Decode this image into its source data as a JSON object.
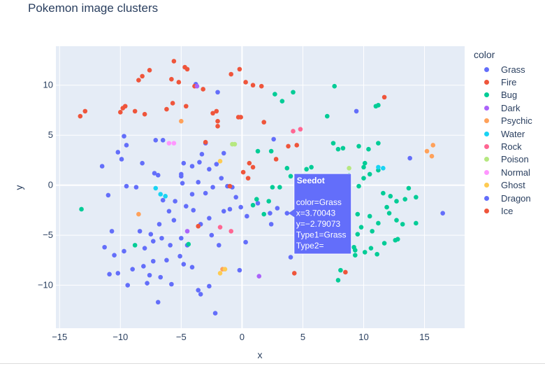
{
  "title": "Pokemon image clusters",
  "legend": {
    "title": "color",
    "items": [
      {
        "label": "Grass",
        "color": "#636efa"
      },
      {
        "label": "Fire",
        "color": "#EF553B"
      },
      {
        "label": "Bug",
        "color": "#00cc96"
      },
      {
        "label": "Dark",
        "color": "#ab63fa"
      },
      {
        "label": "Psychic",
        "color": "#FFA15A"
      },
      {
        "label": "Water",
        "color": "#19d3f3"
      },
      {
        "label": "Rock",
        "color": "#FF6692"
      },
      {
        "label": "Poison",
        "color": "#B6E880"
      },
      {
        "label": "Normal",
        "color": "#FF97FF"
      },
      {
        "label": "Ghost",
        "color": "#FECB52"
      },
      {
        "label": "Dragon",
        "color": "#636efa"
      },
      {
        "label": "Ice",
        "color": "#EF553B"
      }
    ]
  },
  "tooltip": {
    "name": "Seedot",
    "lines": [
      "color=Grass",
      "x=3.70043",
      "y=−2.79073",
      "Type1=Grass",
      "Type2="
    ]
  },
  "chart_data": {
    "type": "scatter",
    "xlabel": "x",
    "ylabel": "y",
    "xlim": [
      -15.3,
      18.3
    ],
    "ylim": [
      -14.3,
      13.9
    ],
    "xticks": [
      -15,
      -10,
      -5,
      0,
      5,
      10,
      15
    ],
    "yticks": [
      -10,
      -5,
      0,
      5,
      10
    ],
    "xtick_labels": [
      "−15",
      "−10",
      "−5",
      "0",
      "5",
      "10",
      "15"
    ],
    "ytick_labels": [
      "−10",
      "−5",
      "0",
      "5",
      "10"
    ],
    "grid": true,
    "legend_position": "right",
    "series": [
      {
        "name": "Grass",
        "points": [
          [
            -11.5,
            1.9
          ],
          [
            -9.7,
            4.9
          ],
          [
            -9.5,
            4.0
          ],
          [
            -10.2,
            3.3
          ],
          [
            -9.9,
            2.6
          ],
          [
            -11.0,
            -1.0
          ],
          [
            -9.5,
            -0.1
          ],
          [
            -8.7,
            -0.2
          ],
          [
            -8.2,
            2.2
          ],
          [
            -7.2,
            1.2
          ],
          [
            -6.9,
            1.0
          ],
          [
            -6.5,
            -1.5
          ],
          [
            -6.0,
            -2.6
          ],
          [
            -5.6,
            -3.5
          ],
          [
            -6.8,
            -3.9
          ],
          [
            -7.5,
            -4.9
          ],
          [
            -8.4,
            -4.6
          ],
          [
            -8.0,
            -6.3
          ],
          [
            -7.3,
            -5.6
          ],
          [
            -6.6,
            -5.3
          ],
          [
            -5.9,
            -6.0
          ],
          [
            -5.0,
            -5.3
          ],
          [
            -4.5,
            -6.0
          ],
          [
            -5.1,
            -7.1
          ],
          [
            -6.2,
            -7.5
          ],
          [
            -7.3,
            -7.6
          ],
          [
            -8.1,
            -8.1
          ],
          [
            -9.0,
            -8.4
          ],
          [
            -9.7,
            -6.6
          ],
          [
            -10.5,
            -7.0
          ],
          [
            -11.3,
            -6.2
          ],
          [
            -10.7,
            -4.6
          ],
          [
            -9.4,
            -10.0
          ],
          [
            -10.2,
            -8.8
          ],
          [
            -10.9,
            -8.9
          ],
          [
            -7.8,
            -9.8
          ],
          [
            -7.6,
            -9.0
          ],
          [
            -6.7,
            -9.2
          ],
          [
            -5.8,
            -9.9
          ],
          [
            -4.8,
            -7.9
          ],
          [
            -4.1,
            -8.2
          ],
          [
            -3.6,
            -10.5
          ],
          [
            -3.4,
            -10.9
          ],
          [
            -2.7,
            -10.1
          ],
          [
            -2.2,
            -12.8
          ],
          [
            -6.9,
            -11.7
          ],
          [
            -2.5,
            -5.0
          ],
          [
            -3.4,
            -3.9
          ],
          [
            -2.7,
            -3.3
          ],
          [
            -1.9,
            -6.0
          ],
          [
            -1.5,
            -2.6
          ],
          [
            -1.0,
            -2.4
          ],
          [
            -0.5,
            -1.2
          ],
          [
            -1.7,
            0.7
          ],
          [
            -1.2,
            -0.1
          ],
          [
            -2.4,
            -0.2
          ],
          [
            -3.0,
            -0.8
          ],
          [
            -3.6,
            0.3
          ],
          [
            -4.1,
            -0.9
          ],
          [
            -4.6,
            -2.1
          ],
          [
            -5.5,
            -1.6
          ],
          [
            -4.9,
            0.2
          ],
          [
            -5.0,
            1.1
          ],
          [
            -4.1,
            1.9
          ],
          [
            -3.5,
            2.3
          ],
          [
            -2.7,
            1.6
          ],
          [
            -3.3,
            3.1
          ],
          [
            -3.0,
            4.2
          ],
          [
            -2.1,
            2.1
          ],
          [
            -1.5,
            3.2
          ],
          [
            -4.8,
            2.2
          ],
          [
            -3.8,
            10.1
          ],
          [
            -2.0,
            9.3
          ],
          [
            -0.1,
            -2.2
          ],
          [
            0.3,
            -5.7
          ],
          [
            -0.2,
            -8.5
          ],
          [
            1.3,
            -1.8
          ],
          [
            2.3,
            -2.8
          ],
          [
            2.4,
            -3.9
          ],
          [
            2.9,
            -2.3
          ],
          [
            3.7,
            -2.8
          ],
          [
            4.0,
            -7.2
          ],
          [
            5.3,
            -0.3
          ],
          [
            6.0,
            0.9
          ],
          [
            9.4,
            7.4
          ],
          [
            13.8,
            2.7
          ],
          [
            16.5,
            -2.8
          ],
          [
            2.6,
            4.6
          ],
          [
            -7.1,
            4.5
          ],
          [
            -6.5,
            4.5
          ],
          [
            -0.8,
            -0.2
          ],
          [
            0.4,
            -3.1
          ]
        ]
      },
      {
        "name": "Fire",
        "points": [
          [
            -13.3,
            6.9
          ],
          [
            -12.9,
            7.4
          ],
          [
            -10.0,
            7.3
          ],
          [
            -9.8,
            7.7
          ],
          [
            -9.6,
            7.9
          ],
          [
            -8.8,
            7.4
          ],
          [
            -8.5,
            10.5
          ],
          [
            -8.2,
            10.9
          ],
          [
            -7.6,
            11.5
          ],
          [
            -8.0,
            7.1
          ],
          [
            -6.2,
            7.6
          ],
          [
            -5.8,
            10.6
          ],
          [
            -5.7,
            8.2
          ],
          [
            -5.2,
            10.3
          ],
          [
            -4.7,
            11.8
          ],
          [
            -4.5,
            11.6
          ],
          [
            -3.9,
            9.9
          ],
          [
            -3.2,
            9.6
          ],
          [
            -5.6,
            12.4
          ],
          [
            -4.6,
            7.9
          ],
          [
            -2.4,
            7.2
          ],
          [
            -2.1,
            7.4
          ],
          [
            -2.0,
            6.4
          ],
          [
            -2.0,
            5.9
          ],
          [
            -0.3,
            6.8
          ],
          [
            -0.1,
            6.8
          ],
          [
            -0.9,
            11.1
          ],
          [
            -0.2,
            11.6
          ],
          [
            0.3,
            10.3
          ],
          [
            0.9,
            10.0
          ],
          [
            1.6,
            9.9
          ],
          [
            1.8,
            6.3
          ],
          [
            2.8,
            2.6
          ],
          [
            3.8,
            3.9
          ],
          [
            4.5,
            4.0
          ],
          [
            0.6,
            2.2
          ],
          [
            0.9,
            1.8
          ],
          [
            -3.0,
            4.3
          ],
          [
            11.7,
            8.8
          ],
          [
            8.5,
            -8.7
          ],
          [
            4.3,
            -8.8
          ],
          [
            0.5,
            0.7
          ],
          [
            -1.0,
            -0.1
          ]
        ]
      },
      {
        "name": "Bug",
        "points": [
          [
            -13.2,
            -2.4
          ],
          [
            -8.8,
            -6.0
          ],
          [
            -4.4,
            -5.9
          ],
          [
            0.9,
            -2.0
          ],
          [
            1.2,
            -1.4
          ],
          [
            1.8,
            -2.9
          ],
          [
            2.2,
            -1.6
          ],
          [
            2.5,
            -0.2
          ],
          [
            3.1,
            -0.2
          ],
          [
            3.7,
            1.7
          ],
          [
            2.4,
            3.4
          ],
          [
            1.3,
            3.4
          ],
          [
            4.0,
            0.9
          ],
          [
            5.3,
            1.6
          ],
          [
            5.7,
            1.8
          ],
          [
            2.7,
            9.1
          ],
          [
            3.3,
            8.4
          ],
          [
            4.2,
            9.3
          ],
          [
            7.6,
            9.9
          ],
          [
            7.0,
            6.9
          ],
          [
            7.5,
            4.2
          ],
          [
            7.9,
            3.6
          ],
          [
            8.3,
            3.7
          ],
          [
            9.6,
            3.9
          ],
          [
            10.4,
            3.6
          ],
          [
            11.2,
            4.2
          ],
          [
            11.0,
            7.9
          ],
          [
            11.2,
            8.0
          ],
          [
            8.8,
            1.0
          ],
          [
            9.6,
            -0.1
          ],
          [
            10.0,
            0.7
          ],
          [
            10.0,
            1.8
          ],
          [
            10.1,
            2.2
          ],
          [
            10.5,
            1.1
          ],
          [
            11.2,
            1.5
          ],
          [
            11.6,
            -0.8
          ],
          [
            12.2,
            -1.1
          ],
          [
            11.9,
            -2.2
          ],
          [
            12.1,
            -2.8
          ],
          [
            12.7,
            -1.6
          ],
          [
            13.4,
            -1.4
          ],
          [
            13.7,
            -0.3
          ],
          [
            14.3,
            -1.2
          ],
          [
            12.7,
            -3.5
          ],
          [
            13.2,
            -3.9
          ],
          [
            12.6,
            -5.5
          ],
          [
            14.3,
            -3.8
          ],
          [
            11.2,
            -3.8
          ],
          [
            10.7,
            -4.6
          ],
          [
            9.8,
            -4.2
          ],
          [
            9.5,
            -4.9
          ],
          [
            9.2,
            -6.2
          ],
          [
            9.3,
            -6.5
          ],
          [
            9.3,
            -7.0
          ],
          [
            10.1,
            -6.7
          ],
          [
            10.6,
            -6.3
          ],
          [
            11.1,
            -6.9
          ],
          [
            11.7,
            -5.8
          ],
          [
            12.8,
            -5.4
          ],
          [
            8.1,
            -8.5
          ],
          [
            7.9,
            -9.5
          ],
          [
            10.5,
            -3.1
          ],
          [
            9.5,
            -2.9
          ]
        ]
      },
      {
        "name": "Dark",
        "points": [
          [
            -4.5,
            -4.6
          ],
          [
            1.4,
            -9.1
          ],
          [
            -3.7,
            9.9
          ]
        ]
      },
      {
        "name": "Psychic",
        "points": [
          [
            -8.5,
            -2.9
          ],
          [
            -5.0,
            6.4
          ],
          [
            15.2,
            3.4
          ],
          [
            15.7,
            4.0
          ],
          [
            15.6,
            2.9
          ],
          [
            -1.6,
            -8.4
          ]
        ]
      },
      {
        "name": "Water",
        "points": [
          [
            -7.1,
            -0.3
          ],
          [
            -6.7,
            -0.9
          ],
          [
            -6.3,
            -1.1
          ],
          [
            11.2,
            1.8
          ],
          [
            11.6,
            1.7
          ]
        ]
      },
      {
        "name": "Rock",
        "points": [
          [
            -1.8,
            -4.2
          ],
          [
            -0.9,
            -4.6
          ],
          [
            4.2,
            5.4
          ],
          [
            4.8,
            5.6
          ]
        ]
      },
      {
        "name": "Poison",
        "points": [
          [
            -0.8,
            4.1
          ],
          [
            -0.6,
            4.1
          ],
          [
            8.8,
            1.7
          ]
        ]
      },
      {
        "name": "Normal",
        "points": [
          [
            -6.0,
            4.2
          ],
          [
            -5.6,
            4.2
          ]
        ]
      },
      {
        "name": "Ghost",
        "points": [
          [
            -1.8,
            2.4
          ],
          [
            -1.8,
            -8.8
          ],
          [
            -1.4,
            -8.4
          ]
        ]
      },
      {
        "name": "Dragon",
        "points": [
          [
            -5.0,
            0.9
          ],
          [
            -4.0,
            -2.5
          ]
        ]
      },
      {
        "name": "Ice",
        "points": [
          [
            -3.6,
            -4.1
          ],
          [
            0.1,
            1.3
          ]
        ]
      }
    ]
  }
}
